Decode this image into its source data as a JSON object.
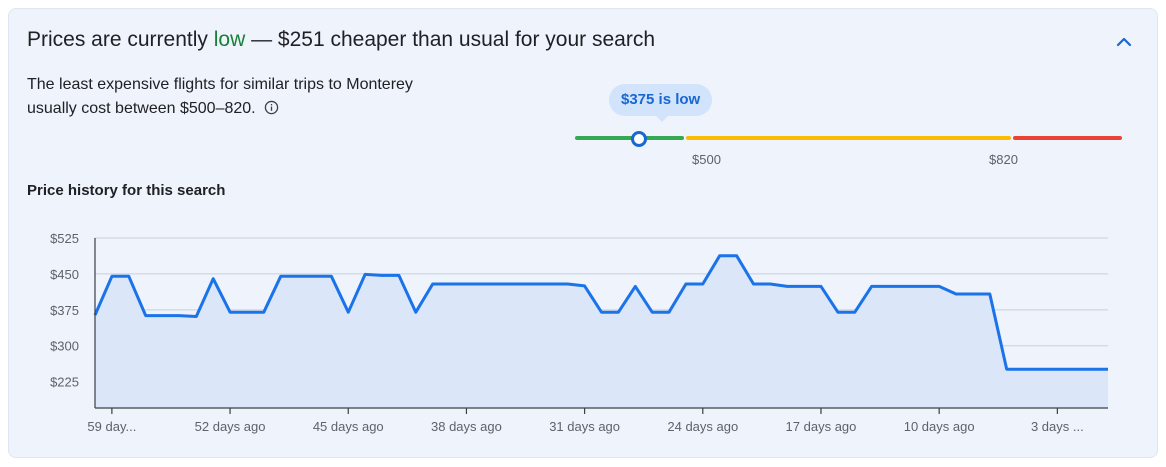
{
  "header": {
    "title_prefix": "Prices are currently ",
    "title_status": "low",
    "title_suffix": " — $251 cheaper than usual for your search",
    "status_color": "#188038",
    "collapse_icon": "chevron-up-icon"
  },
  "summary": {
    "description": "The least expensive flights for similar trips to Monterey usually cost between $500–820.",
    "info_icon": "info-icon"
  },
  "price_gauge": {
    "bubble_label": "$375 is low",
    "current_price": 375,
    "low_threshold_label": "$500",
    "high_threshold_label": "$820",
    "colors": {
      "low": "#34a853",
      "typical": "#fbbc04",
      "high": "#ea4335",
      "marker": "#1967d2"
    }
  },
  "history": {
    "title": "Price history for this search"
  },
  "chart_data": {
    "type": "area",
    "title": "Price history for this search",
    "y_tick_labels": [
      "$525",
      "$450",
      "$375",
      "$300",
      "$225"
    ],
    "y_ticks": [
      525,
      450,
      375,
      300,
      225
    ],
    "ylim": [
      170,
      525
    ],
    "x_tick_labels": [
      "59 day...",
      "52 days ago",
      "45 days ago",
      "38 days ago",
      "31 days ago",
      "24 days ago",
      "17 days ago",
      "10 days ago",
      "3 days ..."
    ],
    "x_tick_days_ago": [
      59,
      52,
      45,
      38,
      31,
      24,
      17,
      10,
      3
    ],
    "xlim_days_ago": [
      60,
      0
    ],
    "grid": true,
    "line_color": "#1a73e8",
    "fill_color": "#dbe6f8",
    "series": [
      {
        "days_ago": [
          60,
          59,
          58,
          57,
          56,
          55,
          54,
          53,
          52,
          51,
          50,
          49,
          48,
          47,
          46,
          45,
          44,
          43,
          42,
          41,
          40,
          39,
          38,
          37,
          36,
          35,
          34,
          33,
          32,
          31,
          30,
          29,
          28,
          27,
          26,
          25,
          24,
          23,
          22,
          21,
          20,
          19,
          18,
          17,
          16,
          15,
          14,
          13,
          12,
          11,
          10,
          9,
          8,
          7,
          6,
          5,
          4,
          3,
          2,
          1,
          0
        ],
        "values": [
          364,
          445,
          445,
          363,
          363,
          363,
          361,
          440,
          370,
          370,
          370,
          445,
          445,
          445,
          445,
          370,
          449,
          447,
          447,
          370,
          429,
          429,
          429,
          429,
          429,
          429,
          429,
          429,
          429,
          425,
          370,
          370,
          424,
          370,
          370,
          429,
          429,
          488,
          488,
          429,
          429,
          424,
          424,
          424,
          370,
          370,
          424,
          424,
          424,
          424,
          424,
          408,
          408,
          408,
          251,
          251,
          251,
          251,
          251,
          251,
          251
        ]
      }
    ]
  }
}
